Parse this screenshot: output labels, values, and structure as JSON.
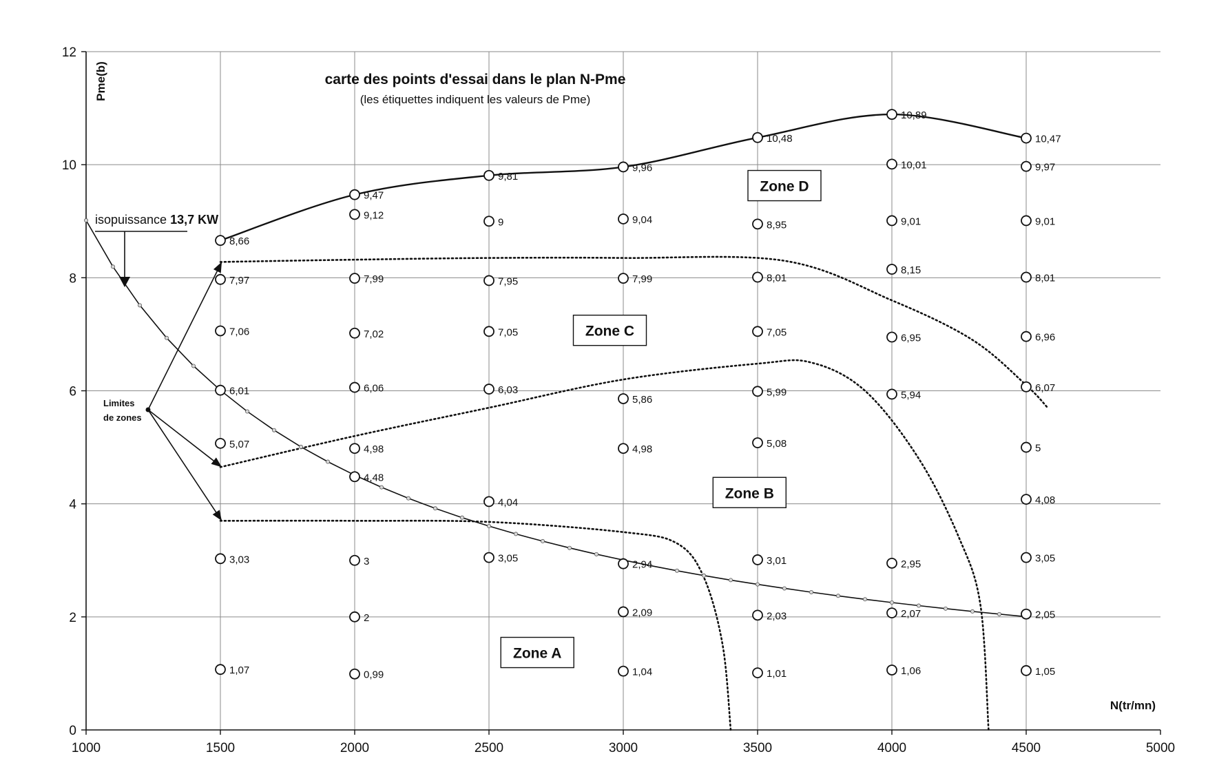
{
  "chart_data": {
    "type": "scatter",
    "title": "carte des points d'essai dans le plan N-Pme",
    "subtitle": "(les étiquettes indiquent les valeurs de Pme)",
    "xlabel": "N(tr/mn)",
    "ylabel": "Pme(b)",
    "xlim": [
      1000,
      5000
    ],
    "ylim": [
      0,
      12
    ],
    "xticks": [
      "1000",
      "1500",
      "2000",
      "2500",
      "3000",
      "3500",
      "4000",
      "4500",
      "5000"
    ],
    "yticks": [
      "0",
      "2",
      "4",
      "6",
      "8",
      "10",
      "12"
    ],
    "grid": true,
    "points": [
      {
        "x": 1500,
        "y": 8.66,
        "label": "8,66"
      },
      {
        "x": 1500,
        "y": 7.97,
        "label": "7,97"
      },
      {
        "x": 1500,
        "y": 7.06,
        "label": "7,06"
      },
      {
        "x": 1500,
        "y": 6.01,
        "label": "6,01"
      },
      {
        "x": 1500,
        "y": 5.07,
        "label": "5,07"
      },
      {
        "x": 1500,
        "y": 3.03,
        "label": "3,03"
      },
      {
        "x": 1500,
        "y": 1.07,
        "label": "1,07"
      },
      {
        "x": 2000,
        "y": 9.47,
        "label": "9,47"
      },
      {
        "x": 2000,
        "y": 9.12,
        "label": "9,12"
      },
      {
        "x": 2000,
        "y": 7.99,
        "label": "7,99"
      },
      {
        "x": 2000,
        "y": 7.02,
        "label": "7,02"
      },
      {
        "x": 2000,
        "y": 6.06,
        "label": "6,06"
      },
      {
        "x": 2000,
        "y": 4.98,
        "label": "4,98"
      },
      {
        "x": 2000,
        "y": 4.48,
        "label": "4,48"
      },
      {
        "x": 2000,
        "y": 3.0,
        "label": "3"
      },
      {
        "x": 2000,
        "y": 2.0,
        "label": "2"
      },
      {
        "x": 2000,
        "y": 0.99,
        "label": "0,99"
      },
      {
        "x": 2500,
        "y": 9.81,
        "label": "9,81"
      },
      {
        "x": 2500,
        "y": 9.0,
        "label": "9"
      },
      {
        "x": 2500,
        "y": 7.95,
        "label": "7,95"
      },
      {
        "x": 2500,
        "y": 7.05,
        "label": "7,05"
      },
      {
        "x": 2500,
        "y": 6.03,
        "label": "6,03"
      },
      {
        "x": 2500,
        "y": 4.04,
        "label": "4,04"
      },
      {
        "x": 2500,
        "y": 3.05,
        "label": "3,05"
      },
      {
        "x": 3000,
        "y": 9.96,
        "label": "9,96"
      },
      {
        "x": 3000,
        "y": 9.04,
        "label": "9,04"
      },
      {
        "x": 3000,
        "y": 7.99,
        "label": "7,99"
      },
      {
        "x": 3000,
        "y": 5.86,
        "label": "5,86"
      },
      {
        "x": 3000,
        "y": 4.98,
        "label": "4,98"
      },
      {
        "x": 3000,
        "y": 2.94,
        "label": "2,94"
      },
      {
        "x": 3000,
        "y": 2.09,
        "label": "2,09"
      },
      {
        "x": 3000,
        "y": 1.04,
        "label": "1,04"
      },
      {
        "x": 3500,
        "y": 10.48,
        "label": "10,48"
      },
      {
        "x": 3500,
        "y": 8.95,
        "label": "8,95"
      },
      {
        "x": 3500,
        "y": 8.01,
        "label": "8,01"
      },
      {
        "x": 3500,
        "y": 7.05,
        "label": "7,05"
      },
      {
        "x": 3500,
        "y": 5.99,
        "label": "5,99"
      },
      {
        "x": 3500,
        "y": 5.08,
        "label": "5,08"
      },
      {
        "x": 3500,
        "y": 3.01,
        "label": "3,01"
      },
      {
        "x": 3500,
        "y": 2.03,
        "label": "2,03"
      },
      {
        "x": 3500,
        "y": 1.01,
        "label": "1,01"
      },
      {
        "x": 4000,
        "y": 10.89,
        "label": "10,89"
      },
      {
        "x": 4000,
        "y": 10.01,
        "label": "10,01"
      },
      {
        "x": 4000,
        "y": 9.01,
        "label": "9,01"
      },
      {
        "x": 4000,
        "y": 8.15,
        "label": "8,15"
      },
      {
        "x": 4000,
        "y": 6.95,
        "label": "6,95"
      },
      {
        "x": 4000,
        "y": 5.94,
        "label": "5,94"
      },
      {
        "x": 4000,
        "y": 2.95,
        "label": "2,95"
      },
      {
        "x": 4000,
        "y": 2.07,
        "label": "2,07"
      },
      {
        "x": 4000,
        "y": 1.06,
        "label": "1,06"
      },
      {
        "x": 4500,
        "y": 10.47,
        "label": "10,47"
      },
      {
        "x": 4500,
        "y": 9.97,
        "label": "9,97"
      },
      {
        "x": 4500,
        "y": 9.01,
        "label": "9,01"
      },
      {
        "x": 4500,
        "y": 8.01,
        "label": "8,01"
      },
      {
        "x": 4500,
        "y": 6.96,
        "label": "6,96"
      },
      {
        "x": 4500,
        "y": 6.07,
        "label": "6,07"
      },
      {
        "x": 4500,
        "y": 5.0,
        "label": "5"
      },
      {
        "x": 4500,
        "y": 4.08,
        "label": "4,08"
      },
      {
        "x": 4500,
        "y": 3.05,
        "label": "3,05"
      },
      {
        "x": 4500,
        "y": 2.05,
        "label": "2,05"
      },
      {
        "x": 4500,
        "y": 1.05,
        "label": "1,05"
      }
    ],
    "full_load_curve": [
      {
        "x": 1500,
        "y": 8.66
      },
      {
        "x": 2000,
        "y": 9.47
      },
      {
        "x": 2500,
        "y": 9.81
      },
      {
        "x": 3000,
        "y": 9.96
      },
      {
        "x": 3500,
        "y": 10.48
      },
      {
        "x": 4000,
        "y": 10.89
      },
      {
        "x": 4500,
        "y": 10.47
      }
    ],
    "isopower_curve": {
      "power_kw": 13.7,
      "x_from": 1000,
      "x_to": 4500,
      "anchor": {
        "x": 1500,
        "y": 6.01
      }
    },
    "zone_boundaries": [
      [
        {
          "x": 1500,
          "y": 3.7
        },
        {
          "x": 2000,
          "y": 3.7
        },
        {
          "x": 2500,
          "y": 3.68
        },
        {
          "x": 3000,
          "y": 3.5
        },
        {
          "x": 3200,
          "y": 3.3
        },
        {
          "x": 3300,
          "y": 2.7
        },
        {
          "x": 3370,
          "y": 1.5
        },
        {
          "x": 3400,
          "y": 0
        }
      ],
      [
        {
          "x": 1500,
          "y": 4.65
        },
        {
          "x": 2000,
          "y": 5.2
        },
        {
          "x": 2500,
          "y": 5.7
        },
        {
          "x": 3000,
          "y": 6.2
        },
        {
          "x": 3500,
          "y": 6.48
        },
        {
          "x": 3700,
          "y": 6.5
        },
        {
          "x": 3900,
          "y": 6.0
        },
        {
          "x": 4100,
          "y": 4.8
        },
        {
          "x": 4250,
          "y": 3.4
        },
        {
          "x": 4330,
          "y": 2.2
        },
        {
          "x": 4360,
          "y": 0
        }
      ],
      [
        {
          "x": 1500,
          "y": 8.28
        },
        {
          "x": 2000,
          "y": 8.32
        },
        {
          "x": 2500,
          "y": 8.35
        },
        {
          "x": 3000,
          "y": 8.35
        },
        {
          "x": 3600,
          "y": 8.3
        },
        {
          "x": 4000,
          "y": 7.6
        },
        {
          "x": 4300,
          "y": 6.9
        },
        {
          "x": 4500,
          "y": 6.1
        },
        {
          "x": 4580,
          "y": 5.7
        }
      ]
    ],
    "zones": [
      {
        "label": "Zone A",
        "x": 2680,
        "y": 1.37
      },
      {
        "label": "Zone B",
        "x": 3470,
        "y": 4.2
      },
      {
        "label": "Zone C",
        "x": 2950,
        "y": 7.07
      },
      {
        "label": "Zone D",
        "x": 3600,
        "y": 9.63
      }
    ],
    "annotations": {
      "isopower_label_prefix": "isopuissance ",
      "isopower_label_bold": "13,7 KW",
      "zone_limits_line1": "Limites",
      "zone_limits_line2": "de zones"
    }
  }
}
